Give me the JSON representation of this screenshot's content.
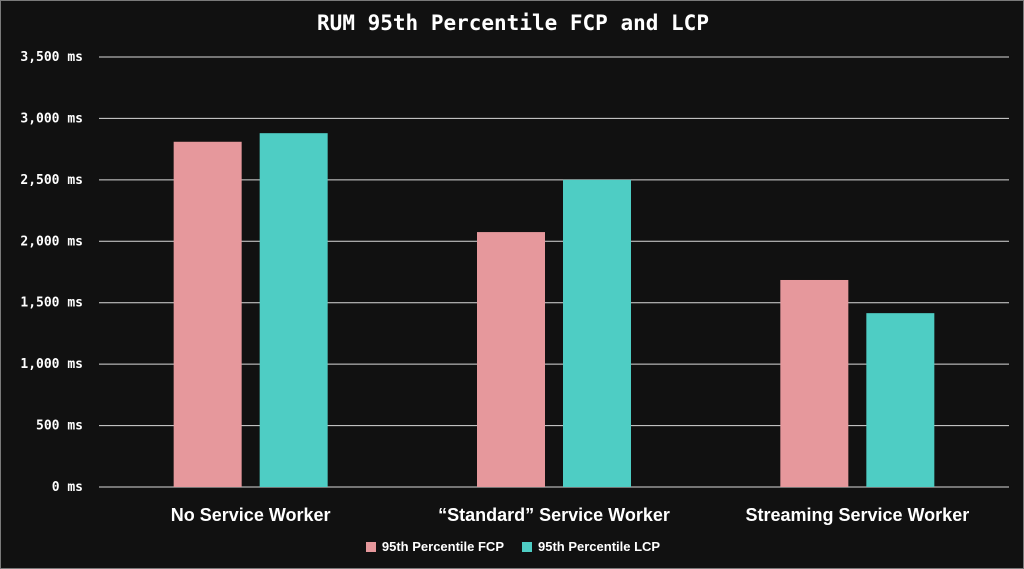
{
  "chart_data": {
    "type": "bar",
    "title": "RUM 95th Percentile FCP and LCP",
    "categories": [
      "No Service Worker",
      "“Standard” Service Worker",
      "Streaming Service Worker"
    ],
    "series": [
      {
        "name": "95th Percentile FCP",
        "color": "#e6989c",
        "values": [
          2810,
          2075,
          1685
        ]
      },
      {
        "name": "95th Percentile LCP",
        "color": "#4ecdc4",
        "values": [
          2880,
          2500,
          1415
        ]
      }
    ],
    "yticks": [
      "0 ms",
      "500 ms",
      "1,000 ms",
      "1,500 ms",
      "2,000 ms",
      "2,500 ms",
      "3,000 ms",
      "3,500 ms"
    ],
    "ylim": [
      0,
      3500
    ],
    "grid": true,
    "legend_position": "bottom",
    "background": "#111111"
  }
}
